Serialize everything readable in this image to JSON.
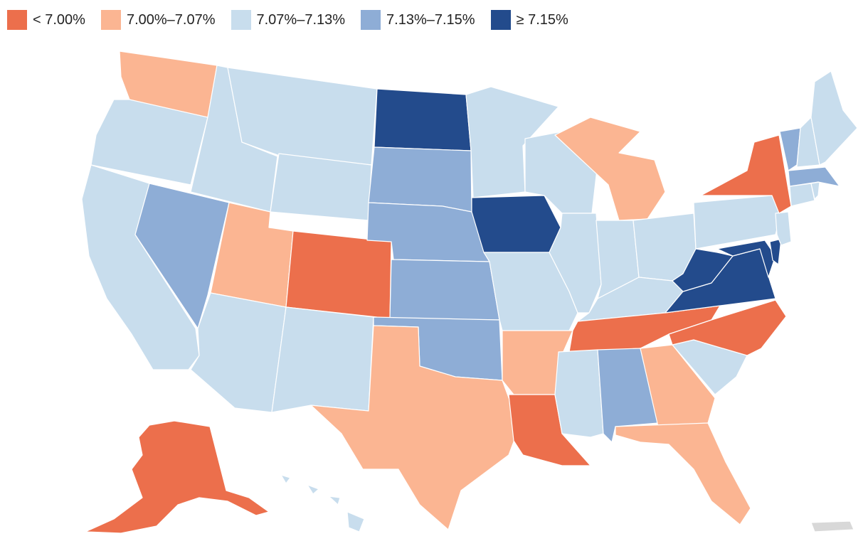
{
  "legend": {
    "items": [
      {
        "label": "< 7.00%",
        "color": "#ec6f4c",
        "bin": "lt700"
      },
      {
        "label": "7.00%–7.07%",
        "color": "#fbb592",
        "bin": "700_707"
      },
      {
        "label": "7.07%–7.13%",
        "color": "#c8dded",
        "bin": "707_713"
      },
      {
        "label": "7.13%–7.15%",
        "color": "#8ead d6",
        "bin": "713_715"
      },
      {
        "label": "≥ 7.15%",
        "color": "#234b8c",
        "bin": "ge715"
      }
    ]
  },
  "colors": {
    "lt700": "#ec6f4c",
    "700_707": "#fbb592",
    "707_713": "#c8dded",
    "713_715": "#8eadd6",
    "ge715": "#234b8c",
    "territory": "#d8d8d8"
  },
  "map_data": {
    "type": "choropleth",
    "states": {
      "WA": "700_707",
      "OR": "707_713",
      "CA": "707_713",
      "ID": "707_713",
      "NV": "713_715",
      "MT": "707_713",
      "WY": "707_713",
      "UT": "700_707",
      "AZ": "707_713",
      "CO": "lt700",
      "NM": "707_713",
      "ND": "ge715",
      "SD": "713_715",
      "NE": "713_715",
      "KS": "713_715",
      "OK": "713_715",
      "TX": "700_707",
      "MN": "707_713",
      "IA": "ge715",
      "MO": "707_713",
      "AR": "700_707",
      "LA": "lt700",
      "WI": "707_713",
      "IL": "707_713",
      "MI": "700_707",
      "IN": "707_713",
      "OH": "707_713",
      "KY": "707_713",
      "TN": "lt700",
      "MS": "707_713",
      "AL": "713_715",
      "GA": "700_707",
      "FL": "700_707",
      "SC": "707_713",
      "NC": "lt700",
      "VA": "ge715",
      "WV": "ge715",
      "MD": "ge715",
      "DE": "ge715",
      "PA": "707_713",
      "NJ": "707_713",
      "NY": "lt700",
      "CT": "707_713",
      "RI": "707_713",
      "MA": "713_715",
      "VT": "713_715",
      "NH": "707_713",
      "ME": "707_713",
      "AK": "lt700",
      "HI": "707_713",
      "PR": "territory"
    }
  }
}
